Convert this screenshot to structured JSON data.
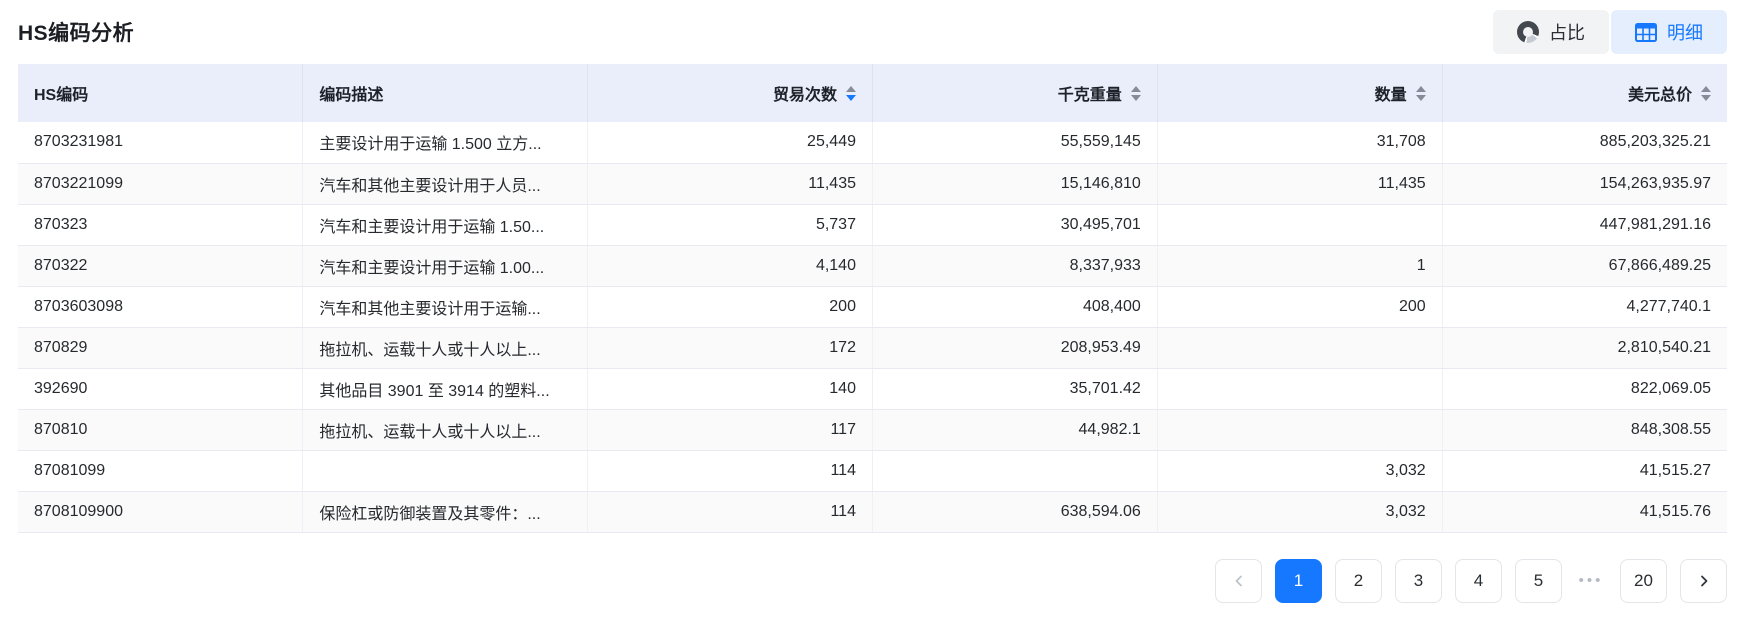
{
  "page": {
    "title": "HS编码分析"
  },
  "view_toggle": {
    "pie_label": "占比",
    "detail_label": "明细",
    "active": "detail"
  },
  "table": {
    "columns": [
      {
        "label": "HS编码",
        "align": "left",
        "sortable": false,
        "sort": null
      },
      {
        "label": "编码描述",
        "align": "left",
        "sortable": false,
        "sort": null
      },
      {
        "label": "贸易次数",
        "align": "right",
        "sortable": true,
        "sort": "desc"
      },
      {
        "label": "千克重量",
        "align": "right",
        "sortable": true,
        "sort": null
      },
      {
        "label": "数量",
        "align": "right",
        "sortable": true,
        "sort": null
      },
      {
        "label": "美元总价",
        "align": "right",
        "sortable": true,
        "sort": null
      }
    ],
    "rows": [
      [
        "8703231981",
        "主要设计用于运输 1.500 立方...",
        "25,449",
        "55,559,145",
        "31,708",
        "885,203,325.21"
      ],
      [
        "8703221099",
        "汽车和其他主要设计用于人员...",
        "11,435",
        "15,146,810",
        "11,435",
        "154,263,935.97"
      ],
      [
        "870323",
        "汽车和主要设计用于运输 1.50...",
        "5,737",
        "30,495,701",
        "",
        "447,981,291.16"
      ],
      [
        "870322",
        "汽车和主要设计用于运输 1.00...",
        "4,140",
        "8,337,933",
        "1",
        "67,866,489.25"
      ],
      [
        "8703603098",
        "汽车和其他主要设计用于运输...",
        "200",
        "408,400",
        "200",
        "4,277,740.1"
      ],
      [
        "870829",
        "拖拉机、运载十人或十人以上...",
        "172",
        "208,953.49",
        "",
        "2,810,540.21"
      ],
      [
        "392690",
        "其他品目 3901 至 3914 的塑料...",
        "140",
        "35,701.42",
        "",
        "822,069.05"
      ],
      [
        "870810",
        "拖拉机、运载十人或十人以上...",
        "117",
        "44,982.1",
        "",
        "848,308.55"
      ],
      [
        "87081099",
        "",
        "114",
        "",
        "3,032",
        "41,515.27"
      ],
      [
        "8708109900",
        "保险杠或防御装置及其零件：...",
        "114",
        "638,594.06",
        "3,032",
        "41,515.76"
      ]
    ]
  },
  "pagination": {
    "items": [
      {
        "type": "prev",
        "disabled": true
      },
      {
        "type": "page",
        "label": "1",
        "active": true
      },
      {
        "type": "page",
        "label": "2"
      },
      {
        "type": "page",
        "label": "3"
      },
      {
        "type": "page",
        "label": "4"
      },
      {
        "type": "page",
        "label": "5"
      },
      {
        "type": "ellipsis",
        "label": "•••"
      },
      {
        "type": "page",
        "label": "20"
      },
      {
        "type": "next"
      }
    ]
  },
  "colors": {
    "accent": "#1677ff",
    "header_bg": "#eaeefa",
    "zebra_row": "#fafafa",
    "detail_btn_bg": "#e4eefc",
    "pie_btn_bg": "#f2f3f5"
  }
}
